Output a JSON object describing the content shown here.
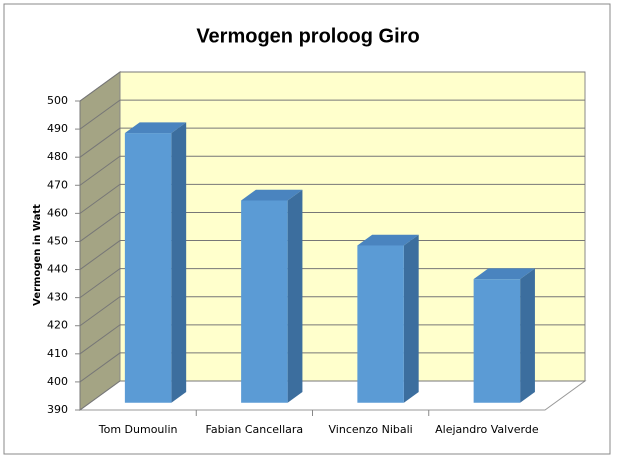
{
  "chart_data": {
    "type": "bar3d",
    "title": "Vermogen proloog Giro",
    "y_label": "Vermogen in Watt",
    "categories": [
      "Tom Dumoulin",
      "Fabian Cancellara",
      "Vincenzo Nibali",
      "Alejandro Valverde"
    ],
    "values": [
      486,
      462,
      446,
      434
    ],
    "color": "#5b9bd5",
    "ylim": [
      390,
      500
    ],
    "yticks": [
      390,
      400,
      410,
      420,
      430,
      440,
      450,
      460,
      470,
      480,
      490,
      500
    ],
    "grid": true
  }
}
